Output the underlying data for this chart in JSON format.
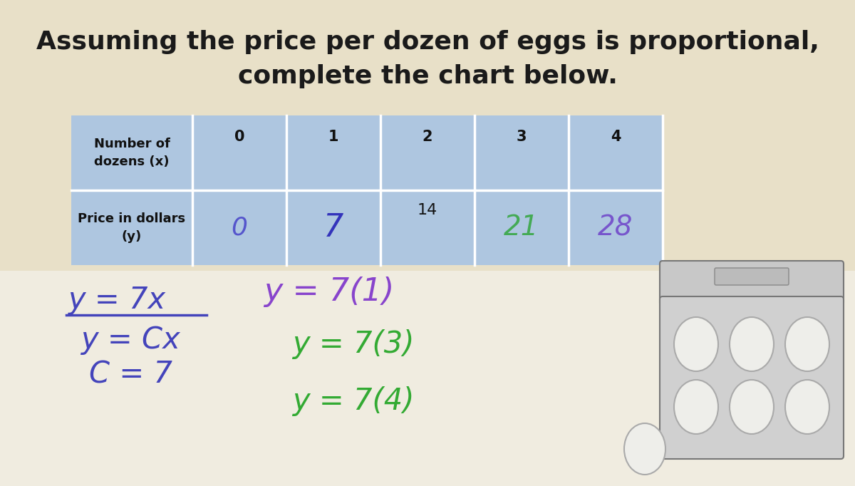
{
  "title_line1": "Assuming the price per dozen of eggs is proportional,",
  "title_line2": "complete the chart below.",
  "bg_color_top": "#e8e0c8",
  "bg_color_bottom": "#f0ece0",
  "table_bg": "#aec6e0",
  "table_border_color": "#ffffff",
  "row1_label": "Number of\ndozens (x)",
  "row2_label": "Price in dollars\n(y)",
  "col_nums": [
    "0",
    "1",
    "2",
    "3",
    "4"
  ],
  "row2_printed": [
    "14"
  ],
  "row2_handwritten_blue": {
    "0": "0",
    "1": "7"
  },
  "row2_handwritten_green": {
    "3": "21"
  },
  "row2_handwritten_purple": {
    "4": "28"
  },
  "hw_left_color": "#4444bb",
  "hw_right_purple": "#8844cc",
  "hw_right_green": "#33aa33",
  "hw_green_table": "#44aa66"
}
